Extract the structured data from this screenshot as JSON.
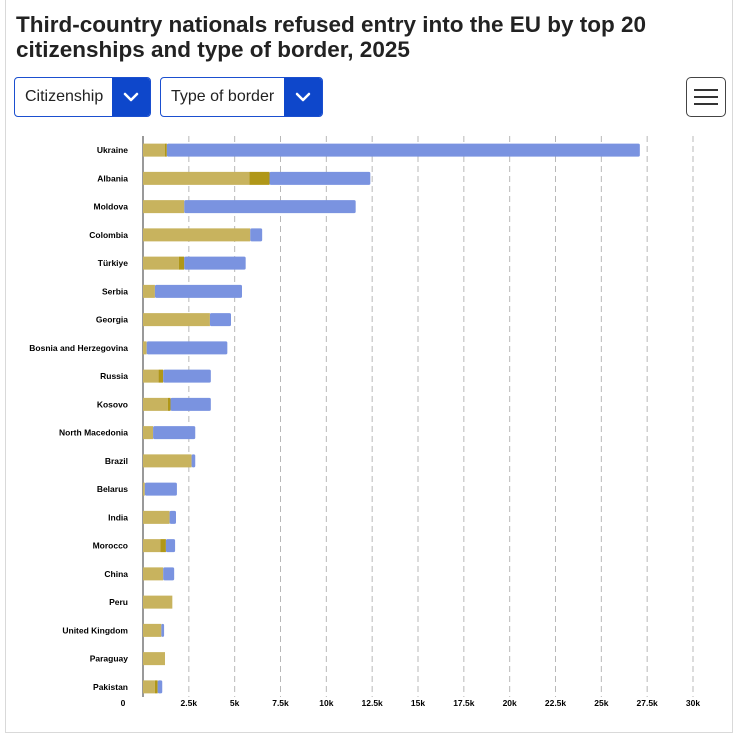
{
  "title": "Third-country nationals refused entry into the EU by top 20 citizenships and type of border, 2025",
  "controls": {
    "citizenship_label": "Citizenship",
    "border_label": "Type of border",
    "menu_icon": "hamburger-menu-icon",
    "dropdown_icon": "chevron-down-icon"
  },
  "colors": {
    "accent": "#0e47cb",
    "series": [
      "#c8b35e",
      "#b09718",
      "#7a93e0"
    ],
    "grid": "#b8b8b8"
  },
  "chart_data": {
    "type": "bar",
    "orientation": "horizontal",
    "stacked": true,
    "title": "Third-country nationals refused entry into the EU by top 20 citizenships and type of border, 2025",
    "xlim": [
      0,
      30000
    ],
    "xticks": [
      0,
      2500,
      5000,
      7500,
      10000,
      12500,
      15000,
      17500,
      20000,
      22500,
      25000,
      27500,
      30000
    ],
    "xtick_labels": [
      "0",
      "2.5k",
      "5k",
      "7.5k",
      "10k",
      "12.5k",
      "15k",
      "17.5k",
      "20k",
      "22.5k",
      "25k",
      "27.5k",
      "30k"
    ],
    "grid": "vertical dashed",
    "legend": "none",
    "categories": [
      "Ukraine",
      "Albania",
      "Moldova",
      "Colombia",
      "Türkiye",
      "Serbia",
      "Georgia",
      "Bosnia and Herzegovina",
      "Russia",
      "Kosovo",
      "North Macedonia",
      "Brazil",
      "Belarus",
      "India",
      "Morocco",
      "China",
      "Peru",
      "United Kingdom",
      "Paraguay",
      "Pakistan"
    ],
    "series": [
      {
        "values": [
          1200,
          5800,
          2250,
          5850,
          1950,
          650,
          3650,
          200,
          850,
          1350,
          550,
          2650,
          100,
          1450,
          950,
          1100,
          1600,
          1000,
          1200,
          650
        ]
      },
      {
        "values": [
          100,
          1100,
          0,
          0,
          300,
          0,
          0,
          0,
          250,
          150,
          0,
          0,
          0,
          0,
          300,
          0,
          0,
          0,
          0,
          150
        ]
      },
      {
        "values": [
          25800,
          5500,
          9350,
          650,
          3350,
          4750,
          1150,
          4400,
          2600,
          2200,
          2300,
          200,
          1750,
          350,
          500,
          600,
          0,
          150,
          0,
          250
        ]
      }
    ]
  }
}
